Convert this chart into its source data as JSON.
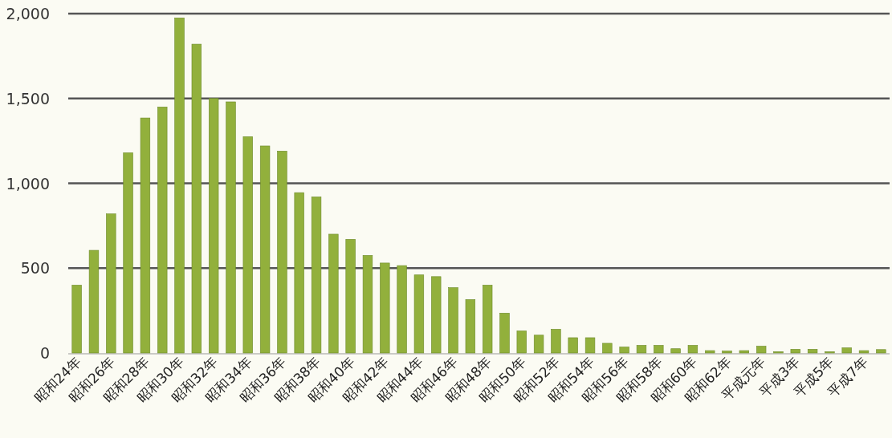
{
  "chart_data": {
    "type": "bar",
    "categories": [
      "昭和24年",
      null,
      "昭和26年",
      null,
      "昭和28年",
      null,
      "昭和30年",
      null,
      "昭和32年",
      null,
      "昭和34年",
      null,
      "昭和36年",
      null,
      "昭和38年",
      null,
      "昭和40年",
      null,
      "昭和42年",
      null,
      "昭和44年",
      null,
      "昭和46年",
      null,
      "昭和48年",
      null,
      "昭和50年",
      null,
      "昭和52年",
      null,
      "昭和54年",
      null,
      "昭和56年",
      null,
      "昭和58年",
      null,
      "昭和60年",
      null,
      "昭和62年",
      null,
      "平成元年",
      null,
      "平成3年",
      null,
      "平成5年",
      null,
      "平成7年",
      null
    ],
    "values": [
      400,
      605,
      820,
      1180,
      1385,
      1450,
      1975,
      1820,
      1500,
      1480,
      1275,
      1220,
      1190,
      945,
      920,
      700,
      670,
      575,
      530,
      515,
      460,
      450,
      385,
      315,
      400,
      235,
      130,
      105,
      140,
      90,
      90,
      57,
      35,
      45,
      45,
      25,
      45,
      14,
      12,
      14,
      40,
      8,
      22,
      22,
      8,
      30,
      14,
      20
    ],
    "color": "#92b03c",
    "ylim": [
      0,
      2000
    ],
    "yticks": [
      {
        "value": 0,
        "label": "0"
      },
      {
        "value": 500,
        "label": "500"
      },
      {
        "value": 1000,
        "label": "1,000"
      },
      {
        "value": 1500,
        "label": "1,500"
      },
      {
        "value": 2000,
        "label": "2,000"
      }
    ],
    "grid": "y"
  }
}
